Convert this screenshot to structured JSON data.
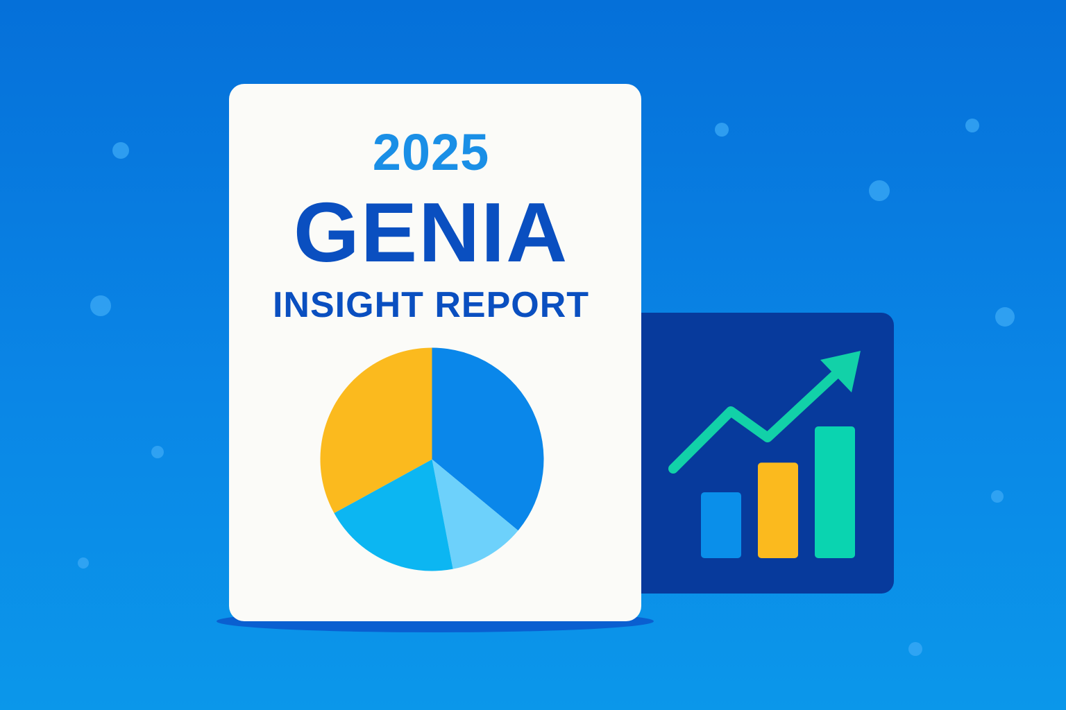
{
  "report": {
    "year": "2025",
    "brand": "GENIA",
    "subtitle": "INSIGHT REPORT"
  },
  "pie_chart": {
    "type": "pie",
    "slices": [
      {
        "value": 36,
        "color": "#0a87ea"
      },
      {
        "value": 11,
        "color": "#6dd1fb"
      },
      {
        "value": 20,
        "color": "#0cb6f2"
      },
      {
        "value": 33,
        "color": "#fbba1e"
      }
    ]
  },
  "bar_chart": {
    "type": "bar",
    "values": [
      1.0,
      1.45,
      2.0
    ],
    "colors": [
      "#0a8fea",
      "#fbba1e",
      "#0ad4b0"
    ],
    "trend_icon": "trend-up-arrow-icon",
    "trend_color": "#12d1a8"
  },
  "colors": {
    "background": "#0a7fe0",
    "card": "#fbfbf8",
    "panel": "#073a9c",
    "accent_blue": "#1a8fe6",
    "title_blue": "#0a4fc0"
  }
}
